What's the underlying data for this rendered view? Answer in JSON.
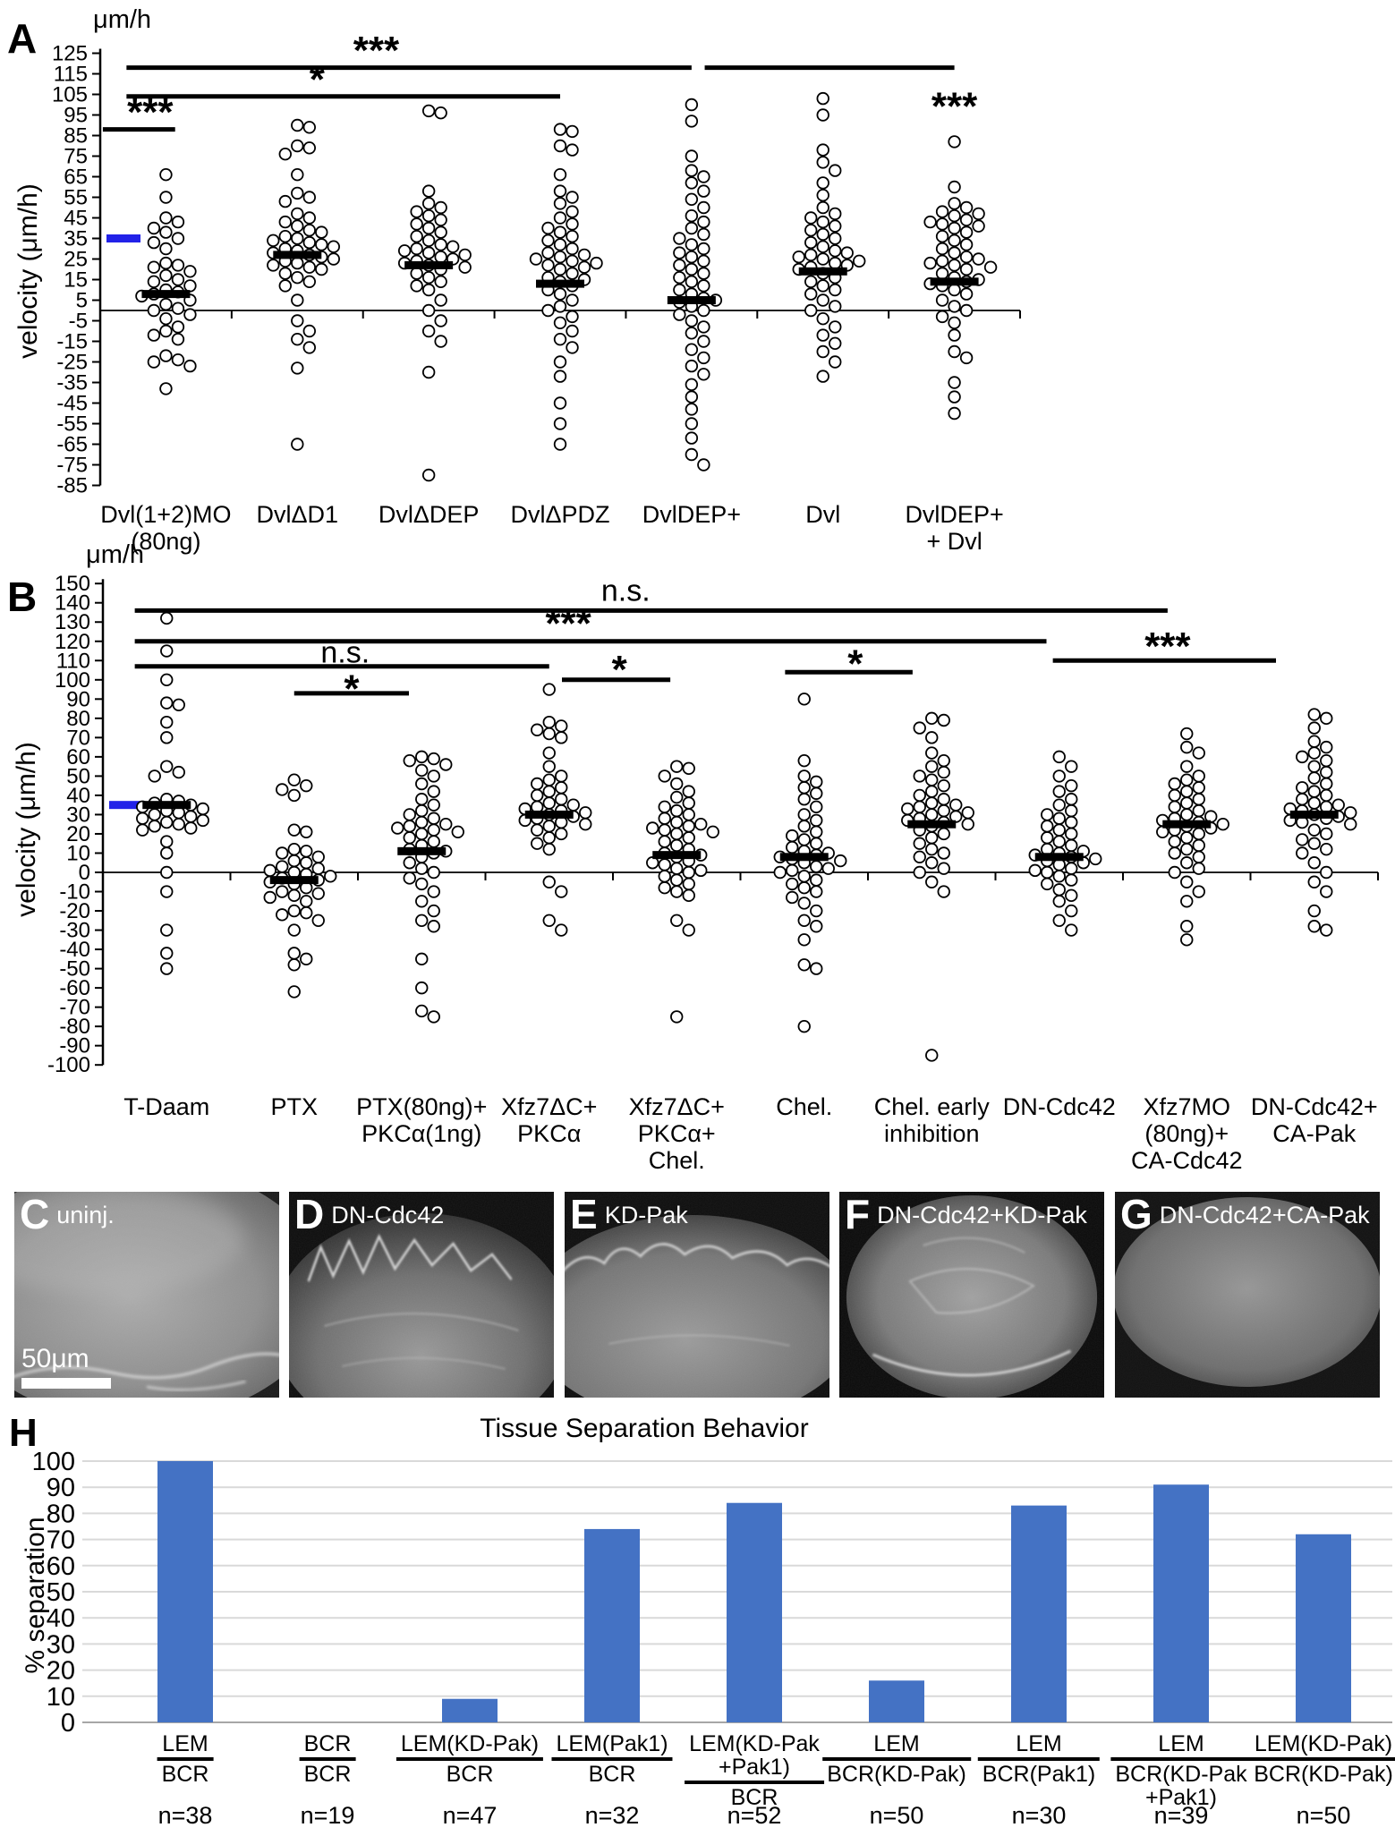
{
  "panels": {
    "A": {
      "letter": "A"
    },
    "B": {
      "letter": "B"
    },
    "H": {
      "letter": "H"
    }
  },
  "chart_data": [
    {
      "panel": "A",
      "type": "scatter",
      "unit_top_label": "μm/h",
      "ylabel": "velocity (μm/h)",
      "ylim": [
        -85,
        125
      ],
      "ytick_step": 10,
      "reference_value": 35,
      "reference_color": "#2222e8",
      "dot_style": "open-circle",
      "categories": [
        {
          "label_lines": [
            "Dvl(1+2)MO",
            "(80ng)"
          ],
          "mean": 8,
          "values": [
            66,
            55,
            45,
            43,
            40,
            38,
            35,
            33,
            30,
            23,
            22,
            21,
            19,
            17,
            15,
            14,
            12,
            10,
            9,
            8,
            7,
            5,
            3,
            1,
            0,
            -2,
            -4,
            -8,
            -10,
            -12,
            -14,
            -22,
            -24,
            -25,
            -27,
            -38
          ]
        },
        {
          "label_lines": [
            "DvlΔD1"
          ],
          "mean": 27,
          "values": [
            90,
            89,
            80,
            79,
            76,
            66,
            57,
            55,
            53,
            47,
            45,
            43,
            41,
            39,
            38,
            36,
            35,
            34,
            33,
            32,
            31,
            30,
            29,
            28,
            27,
            26,
            25,
            24,
            23,
            22,
            21,
            20,
            18,
            16,
            14,
            12,
            5,
            -5,
            -10,
            -14,
            -18,
            -28,
            -65
          ]
        },
        {
          "label_lines": [
            "DvlΔDEP"
          ],
          "mean": 22,
          "values": [
            97,
            96,
            58,
            52,
            50,
            48,
            46,
            44,
            42,
            40,
            38,
            36,
            34,
            32,
            31,
            30,
            29,
            28,
            27,
            26,
            25,
            24,
            23,
            22,
            21,
            20,
            18,
            16,
            14,
            12,
            10,
            5,
            0,
            -5,
            -10,
            -15,
            -30,
            -80
          ]
        },
        {
          "label_lines": [
            "DvlΔPDZ"
          ],
          "mean": 13,
          "values": [
            88,
            87,
            80,
            78,
            66,
            58,
            55,
            52,
            48,
            45,
            42,
            40,
            38,
            36,
            34,
            32,
            30,
            28,
            27,
            26,
            25,
            24,
            23,
            22,
            21,
            20,
            18,
            16,
            15,
            14,
            12,
            10,
            8,
            5,
            2,
            0,
            -3,
            -6,
            -10,
            -14,
            -18,
            -25,
            -32,
            -45,
            -55,
            -65
          ]
        },
        {
          "label_lines": [
            "DvlDEP+"
          ],
          "mean": 5,
          "values": [
            100,
            92,
            75,
            68,
            65,
            62,
            58,
            54,
            50,
            46,
            43,
            40,
            37,
            35,
            32,
            30,
            28,
            26,
            24,
            22,
            20,
            18,
            16,
            14,
            12,
            10,
            8,
            6,
            5,
            4,
            2,
            0,
            -2,
            -5,
            -8,
            -11,
            -15,
            -19,
            -23,
            -27,
            -31,
            -36,
            -42,
            -48,
            -55,
            -62,
            -70,
            -75
          ]
        },
        {
          "label_lines": [
            "Dvl"
          ],
          "mean": 19,
          "values": [
            103,
            95,
            78,
            72,
            68,
            62,
            56,
            50,
            47,
            45,
            43,
            41,
            39,
            37,
            35,
            33,
            31,
            29,
            28,
            27,
            26,
            25,
            24,
            23,
            22,
            21,
            20,
            18,
            16,
            14,
            12,
            10,
            8,
            5,
            2,
            0,
            -4,
            -8,
            -12,
            -16,
            -20,
            -25,
            -32
          ]
        },
        {
          "label_lines": [
            "DvlDEP+",
            "+ Dvl"
          ],
          "mean": 14,
          "values": [
            82,
            60,
            52,
            50,
            48,
            47,
            46,
            44,
            43,
            42,
            41,
            40,
            38,
            36,
            34,
            32,
            30,
            28,
            26,
            25,
            24,
            23,
            22,
            21,
            20,
            18,
            16,
            15,
            14,
            13,
            12,
            10,
            8,
            5,
            2,
            0,
            -3,
            -6,
            -12,
            -20,
            -23,
            -35,
            -42,
            -50
          ]
        }
      ],
      "significance": [
        {
          "x1": -0.48,
          "x2": 0.07,
          "y": 88,
          "label": "***",
          "lx": -0.12,
          "ly": 96
        },
        {
          "x1": -0.3,
          "x2": 3,
          "y": 104,
          "label": "*",
          "lx": 1.15,
          "ly": 112
        },
        {
          "x1": -0.3,
          "x2": 4,
          "y": 118,
          "label": "***",
          "lx": 1.6,
          "ly": 126
        },
        {
          "x1": 4.1,
          "x2": 6,
          "y": 118,
          "label": "***",
          "lx": 6.0,
          "ly": 99
        }
      ]
    },
    {
      "panel": "B",
      "type": "scatter",
      "unit_top_label": "μm/h",
      "ylabel": "velocity (μm/h)",
      "ylim": [
        -100,
        150
      ],
      "ytick_step": 10,
      "reference_value": 35,
      "reference_color": "#2222e8",
      "dot_style": "open-circle",
      "categories": [
        {
          "label_lines": [
            "T-Daam"
          ],
          "mean": 35,
          "values": [
            132,
            115,
            100,
            88,
            87,
            78,
            70,
            55,
            52,
            50,
            38,
            37,
            36,
            35,
            34,
            33,
            32,
            31,
            30,
            29,
            28,
            27,
            26,
            25,
            24,
            23,
            22,
            16,
            10,
            0,
            -10,
            -30,
            -42,
            -50
          ]
        },
        {
          "label_lines": [
            "PTX"
          ],
          "mean": -4,
          "values": [
            48,
            45,
            43,
            40,
            22,
            21,
            12,
            11,
            10,
            8,
            6,
            5,
            3,
            2,
            1,
            0,
            -1,
            -2,
            -3,
            -4,
            -5,
            -6,
            -8,
            -10,
            -11,
            -12,
            -13,
            -15,
            -20,
            -21,
            -22,
            -25,
            -30,
            -42,
            -45,
            -48,
            -62
          ]
        },
        {
          "label_lines": [
            "PTX(80ng)+",
            "PKCα(1ng)"
          ],
          "mean": 11,
          "values": [
            60,
            59,
            58,
            56,
            53,
            50,
            46,
            42,
            38,
            35,
            32,
            30,
            28,
            26,
            25,
            24,
            23,
            22,
            21,
            20,
            18,
            16,
            14,
            12,
            11,
            10,
            8,
            5,
            2,
            0,
            -3,
            -6,
            -10,
            -15,
            -20,
            -25,
            -28,
            -45,
            -60,
            -72,
            -75
          ]
        },
        {
          "label_lines": [
            "Xfz7ΔC+",
            "PKCα"
          ],
          "mean": 30,
          "values": [
            95,
            78,
            76,
            74,
            72,
            70,
            62,
            55,
            50,
            48,
            46,
            44,
            42,
            40,
            38,
            36,
            35,
            34,
            33,
            32,
            31,
            30,
            29,
            28,
            27,
            26,
            25,
            24,
            22,
            20,
            18,
            15,
            12,
            -5,
            -10,
            -25,
            -30
          ]
        },
        {
          "label_lines": [
            "Xfz7ΔC+",
            "PKCα+",
            "Chel."
          ],
          "mean": 9,
          "values": [
            55,
            54,
            50,
            46,
            42,
            39,
            36,
            34,
            32,
            30,
            28,
            26,
            25,
            24,
            23,
            22,
            21,
            20,
            18,
            16,
            14,
            12,
            10,
            9,
            8,
            6,
            5,
            4,
            2,
            1,
            0,
            -2,
            -4,
            -6,
            -8,
            -10,
            -12,
            -25,
            -30,
            -75
          ]
        },
        {
          "label_lines": [
            "Chel."
          ],
          "mean": 8,
          "values": [
            90,
            58,
            50,
            47,
            44,
            41,
            38,
            34,
            30,
            27,
            24,
            21,
            19,
            17,
            15,
            13,
            11,
            10,
            9,
            8,
            7,
            6,
            5,
            3,
            2,
            1,
            0,
            -2,
            -4,
            -6,
            -8,
            -10,
            -13,
            -16,
            -20,
            -25,
            -28,
            -35,
            -48,
            -50,
            -80
          ]
        },
        {
          "label_lines": [
            "Chel. early",
            "inhibition"
          ],
          "mean": 25,
          "values": [
            80,
            79,
            75,
            70,
            62,
            58,
            55,
            52,
            50,
            48,
            45,
            42,
            40,
            38,
            36,
            35,
            34,
            33,
            32,
            31,
            30,
            29,
            28,
            27,
            26,
            25,
            24,
            22,
            20,
            18,
            15,
            12,
            10,
            8,
            5,
            2,
            0,
            -5,
            -10,
            -95
          ]
        },
        {
          "label_lines": [
            "DN-Cdc42"
          ],
          "mean": 8,
          "values": [
            60,
            55,
            50,
            45,
            42,
            38,
            35,
            32,
            30,
            28,
            26,
            24,
            22,
            20,
            18,
            16,
            14,
            12,
            11,
            10,
            9,
            8,
            7,
            6,
            5,
            4,
            2,
            1,
            0,
            -2,
            -4,
            -6,
            -9,
            -12,
            -15,
            -20,
            -25,
            -30
          ]
        },
        {
          "label_lines": [
            "Xfz7MO",
            "(80ng)+",
            "CA-Cdc42"
          ],
          "mean": 25,
          "values": [
            72,
            65,
            62,
            55,
            50,
            48,
            46,
            44,
            42,
            40,
            38,
            36,
            34,
            32,
            30,
            29,
            28,
            27,
            26,
            25,
            24,
            23,
            22,
            21,
            20,
            18,
            16,
            14,
            12,
            10,
            8,
            5,
            2,
            0,
            -5,
            -10,
            -15,
            -28,
            -35
          ]
        },
        {
          "label_lines": [
            "DN-Cdc42+",
            "CA-Pak"
          ],
          "mean": 30,
          "values": [
            82,
            80,
            75,
            68,
            65,
            62,
            60,
            58,
            55,
            52,
            49,
            46,
            44,
            42,
            40,
            38,
            36,
            35,
            34,
            33,
            32,
            31,
            30,
            29,
            28,
            27,
            26,
            25,
            22,
            20,
            17,
            15,
            12,
            10,
            5,
            0,
            -5,
            -10,
            -20,
            -28,
            -30
          ]
        }
      ],
      "significance": [
        {
          "x1": -0.25,
          "x2": 7.85,
          "y": 136,
          "label": "n.s.",
          "lx": 3.6,
          "ly": 141
        },
        {
          "x1": -0.25,
          "x2": 6.9,
          "y": 120,
          "label": "***",
          "lx": 3.15,
          "ly": 129
        },
        {
          "x1": -0.25,
          "x2": 3.0,
          "y": 107,
          "label": "n.s.",
          "lx": 1.4,
          "ly": 109
        },
        {
          "x1": 1.0,
          "x2": 1.9,
          "y": 93,
          "label": "*",
          "lx": 1.45,
          "ly": 95
        },
        {
          "x1": 3.1,
          "x2": 3.95,
          "y": 100,
          "label": "*",
          "lx": 3.55,
          "ly": 105
        },
        {
          "x1": 4.85,
          "x2": 5.85,
          "y": 104,
          "label": "*",
          "lx": 5.4,
          "ly": 108
        },
        {
          "x1": 6.95,
          "x2": 8.7,
          "y": 110,
          "label": "***",
          "lx": 7.85,
          "ly": 117
        }
      ]
    },
    {
      "panel": "H",
      "type": "bar",
      "title": "Tissue Separation Behavior",
      "ylabel": "% separation",
      "ylim": [
        0,
        100
      ],
      "ytick_step": 10,
      "bar_color": "#4472c4",
      "grid_color": "#d9d9d9",
      "axis_color": "#a6a6a6",
      "categories": [
        {
          "numerator": [
            "LEM"
          ],
          "denominator": [
            "BCR"
          ],
          "n": "n=38",
          "value": 100
        },
        {
          "numerator": [
            "BCR"
          ],
          "denominator": [
            "BCR"
          ],
          "n": "n=19",
          "value": 0
        },
        {
          "numerator": [
            "LEM(KD-Pak)"
          ],
          "denominator": [
            "BCR"
          ],
          "n": "n=47",
          "value": 9
        },
        {
          "numerator": [
            "LEM(Pak1)"
          ],
          "denominator": [
            "BCR"
          ],
          "n": "n=32",
          "value": 74
        },
        {
          "numerator": [
            "LEM(KD-Pak",
            "+Pak1)"
          ],
          "denominator": [
            "BCR"
          ],
          "n": "n=52",
          "value": 84
        },
        {
          "numerator": [
            "LEM"
          ],
          "denominator": [
            "BCR(KD-Pak)"
          ],
          "n": "n=50",
          "value": 16
        },
        {
          "numerator": [
            "LEM"
          ],
          "denominator": [
            "BCR(Pak1)"
          ],
          "n": "n=30",
          "value": 83
        },
        {
          "numerator": [
            "LEM"
          ],
          "denominator": [
            "BCR(KD-Pak",
            "+Pak1)"
          ],
          "n": "n=39",
          "value": 91
        },
        {
          "numerator": [
            "LEM(KD-Pak)"
          ],
          "denominator": [
            "BCR(KD-Pak)"
          ],
          "n": "n=50",
          "value": 72
        }
      ]
    }
  ],
  "micrographs": {
    "items": [
      {
        "letter": "C",
        "label": "uninj."
      },
      {
        "letter": "D",
        "label": "DN-Cdc42"
      },
      {
        "letter": "E",
        "label": "KD-Pak"
      },
      {
        "letter": "F",
        "label": "DN-Cdc42+KD-Pak"
      },
      {
        "letter": "G",
        "label": "DN-Cdc42+CA-Pak"
      }
    ],
    "scale_bar_label": "50μm"
  }
}
